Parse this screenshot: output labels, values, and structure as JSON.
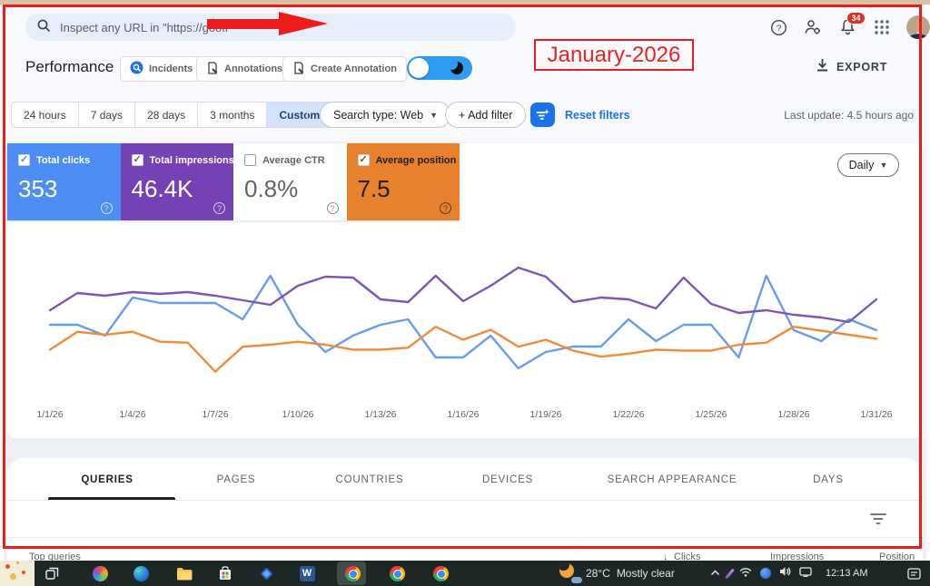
{
  "annotation_overlay": {
    "month_label": "January-2026",
    "accent_color": "#ee1b1b"
  },
  "topbar": {
    "search_placeholder": "Inspect any URL in \"https://gooff",
    "notification_badge": "34"
  },
  "header": {
    "title": "Performance",
    "incidents_label": "Incidents",
    "annotations_label": "Annotations",
    "create_annotation_label": "Create Annotation",
    "export_label": "EXPORT"
  },
  "filters": {
    "ranges": [
      "24 hours",
      "7 days",
      "28 days",
      "3 months"
    ],
    "custom_label": "Custom",
    "search_type_label": "Search type: Web",
    "add_filter_label": "+ Add filter",
    "reset_label": "Reset filters",
    "last_update": "Last update: 4.5 hours ago"
  },
  "metric_cards": [
    {
      "label": "Total clicks",
      "value": "353",
      "checked": true,
      "bg": "#4d8ef5",
      "text": "#ffffff",
      "check_color": "#4d8ef5"
    },
    {
      "label": "Total impressions",
      "value": "46.4K",
      "checked": true,
      "bg": "#7542b5",
      "text": "#ffffff",
      "check_color": "#7542b5"
    },
    {
      "label": "Average CTR",
      "value": "0.8%",
      "checked": false,
      "bg": "#ffffff",
      "text": "#5f6368",
      "check_color": "#9aa0a6"
    },
    {
      "label": "Average position",
      "value": "7.5",
      "checked": true,
      "bg": "#e8812d",
      "text": "#202124",
      "check_color": "#9a4a00"
    }
  ],
  "chart_controls": {
    "granularity": "Daily"
  },
  "chart_data": {
    "type": "line",
    "x_labels": [
      "1/1/26",
      "1/4/26",
      "1/7/26",
      "1/10/26",
      "1/13/26",
      "1/16/26",
      "1/19/26",
      "1/22/26",
      "1/25/26",
      "1/28/26",
      "1/31/26"
    ],
    "days": 31,
    "grid": false,
    "legend": false,
    "series": [
      {
        "name": "Clicks",
        "color": "#669cf4",
        "total": "353",
        "values": [
          12,
          12,
          10,
          17,
          16,
          16,
          16,
          13,
          21,
          12,
          7,
          10,
          12,
          13,
          6,
          6,
          10,
          4,
          7,
          8,
          8,
          13,
          9,
          12,
          12,
          6,
          21,
          11,
          9,
          13,
          11
        ]
      },
      {
        "name": "Impressions",
        "color": "#7c54be",
        "total": "46.4K",
        "values": [
          1320,
          1605,
          1560,
          1620,
          1590,
          1620,
          1560,
          1485,
          1410,
          1725,
          1875,
          1860,
          1500,
          1455,
          1890,
          1470,
          1725,
          2025,
          1875,
          1455,
          1530,
          1500,
          1350,
          1860,
          1425,
          1275,
          1320,
          1245,
          1200,
          1125,
          1500
        ]
      },
      {
        "name": "Position",
        "color": "#f08c38",
        "average": "7.5",
        "axis_inverted": true,
        "values": [
          7.5,
          5.7,
          6.0,
          5.7,
          6.7,
          6.8,
          9.7,
          7.2,
          7.0,
          6.7,
          7.0,
          7.5,
          7.5,
          7.3,
          5.2,
          6.5,
          5.5,
          7.2,
          6.5,
          7.6,
          8.2,
          7.9,
          7.5,
          7.6,
          7.6,
          7.0,
          6.8,
          5.2,
          5.6,
          6.0,
          6.4
        ]
      }
    ]
  },
  "tabs": {
    "items": [
      "QUERIES",
      "PAGES",
      "COUNTRIES",
      "DEVICES",
      "SEARCH APPEARANCE",
      "DAYS"
    ],
    "active": "QUERIES"
  },
  "table_header": {
    "left": "Top queries",
    "sort_arrow": "↓",
    "columns": [
      "Clicks",
      "Impressions",
      "Position"
    ]
  },
  "taskbar": {
    "temperature": "28°C",
    "condition": "Mostly clear",
    "time": "12:13 AM"
  }
}
